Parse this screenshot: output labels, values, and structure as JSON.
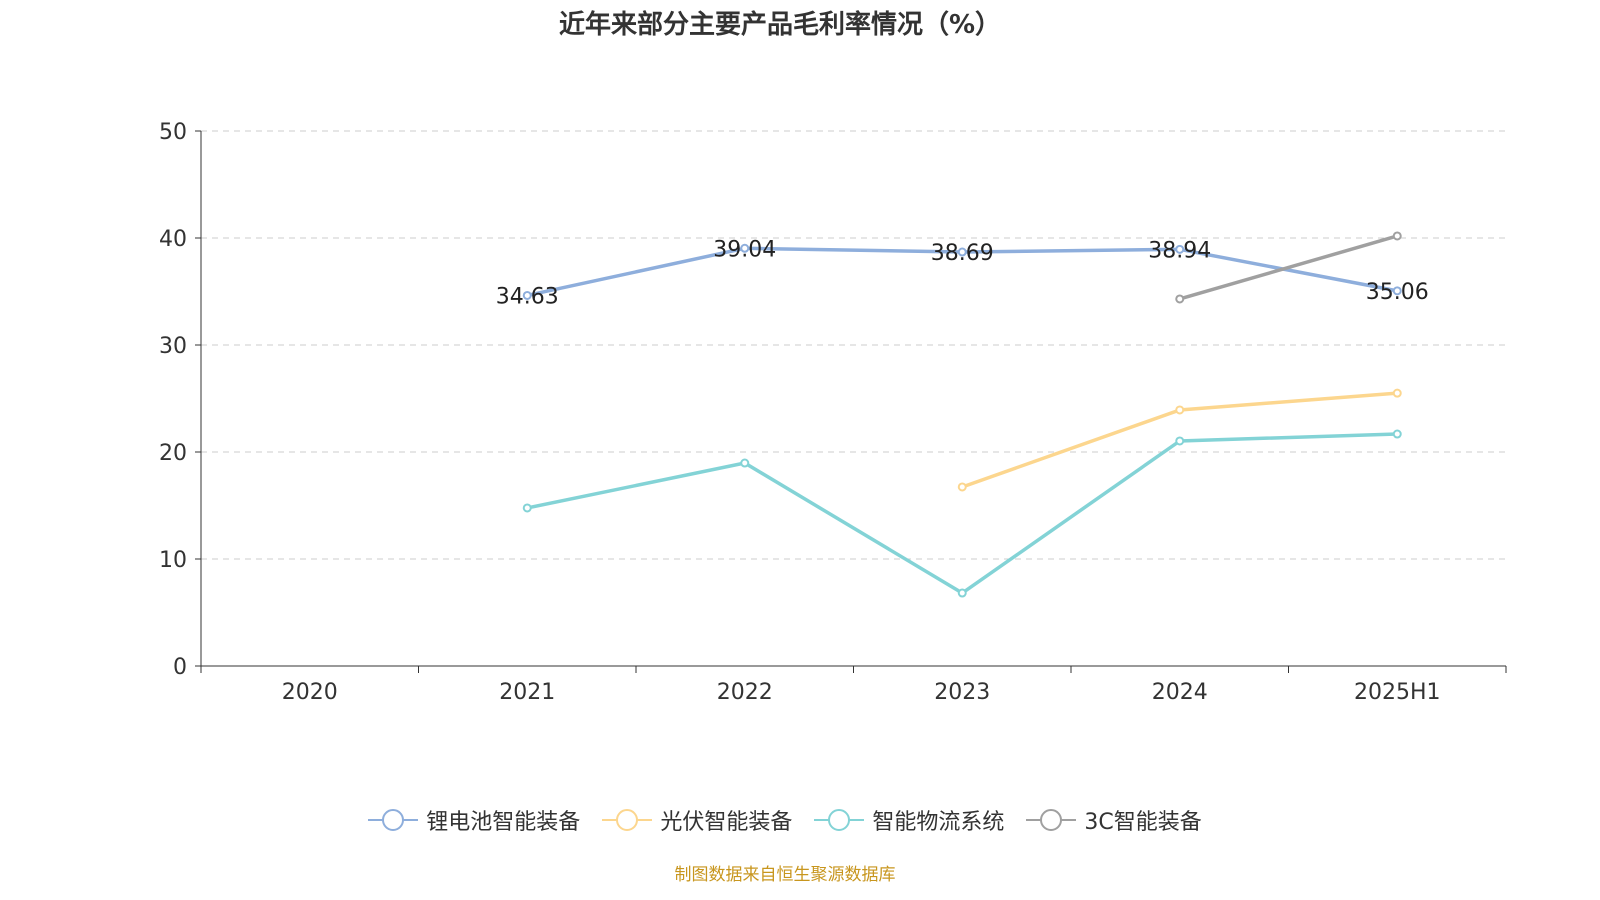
{
  "chart_data": {
    "type": "line",
    "title": "近年来部分主要产品毛利率情况（%）",
    "categories": [
      "2020",
      "2021",
      "2022",
      "2023",
      "2024",
      "2025H1"
    ],
    "ylim": [
      0,
      50
    ],
    "yticks": [
      0,
      10,
      20,
      30,
      40,
      50
    ],
    "grid": true,
    "legend_position": "bottom",
    "series": [
      {
        "name": "锂电池智能装备",
        "color": "#8eaedc",
        "values": [
          null,
          34.63,
          39.04,
          38.69,
          38.94,
          35.06
        ],
        "labels": true
      },
      {
        "name": "光伏智能装备",
        "color": "#fcd68e",
        "values": [
          null,
          null,
          null,
          16.73,
          23.93,
          25.5
        ],
        "labels": false
      },
      {
        "name": "智能物流系统",
        "color": "#83d3d6",
        "values": [
          null,
          14.77,
          18.97,
          6.82,
          21.03,
          21.68
        ],
        "labels": false
      },
      {
        "name": "3C智能装备",
        "color": "#a0a0a0",
        "values": [
          null,
          null,
          null,
          null,
          34.3,
          40.19
        ],
        "labels": false
      }
    ]
  },
  "source": "制图数据来自恒生聚源数据库"
}
